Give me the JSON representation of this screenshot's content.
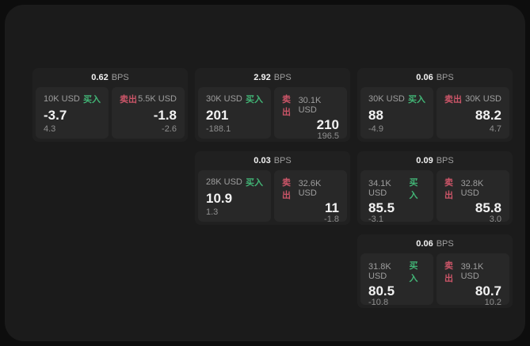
{
  "theme": {
    "outer_bg": "#0d0d0d",
    "window_bg": "#1b1b1b",
    "card_bg": "#202020",
    "panel_bg": "#282828",
    "text_primary": "#f2f2f2",
    "text_secondary": "#9e9e9e",
    "text_muted": "#8f8f8f",
    "buy_color": "#42b576",
    "sell_color": "#cb5568"
  },
  "labels": {
    "bps_unit": "BPS",
    "buy": "买入",
    "sell": "卖出"
  },
  "cards": [
    {
      "spread_bps": "0.62",
      "row": 1,
      "col": 1,
      "buy": {
        "size": "10K USD",
        "price": "-3.7",
        "delta": "4.3"
      },
      "sell": {
        "size": "5.5K USD",
        "price": "-1.8",
        "delta": "-2.6"
      }
    },
    {
      "spread_bps": "2.92",
      "row": 1,
      "col": 2,
      "buy": {
        "size": "30K USD",
        "price": "201",
        "delta": "-188.1"
      },
      "sell": {
        "size": "30.1K USD",
        "price": "210",
        "delta": "196.5"
      }
    },
    {
      "spread_bps": "0.06",
      "row": 1,
      "col": 3,
      "buy": {
        "size": "30K USD",
        "price": "88",
        "delta": "-4.9"
      },
      "sell": {
        "size": "30K USD",
        "price": "88.2",
        "delta": "4.7"
      }
    },
    {
      "spread_bps": "0.03",
      "row": 2,
      "col": 2,
      "buy": {
        "size": "28K USD",
        "price": "10.9",
        "delta": "1.3"
      },
      "sell": {
        "size": "32.6K USD",
        "price": "11",
        "delta": "-1.8"
      }
    },
    {
      "spread_bps": "0.09",
      "row": 2,
      "col": 3,
      "buy": {
        "size": "34.1K USD",
        "price": "85.5",
        "delta": "-3.1"
      },
      "sell": {
        "size": "32.8K USD",
        "price": "85.8",
        "delta": "3.0"
      }
    },
    {
      "spread_bps": "0.06",
      "row": 3,
      "col": 3,
      "buy": {
        "size": "31.8K USD",
        "price": "80.5",
        "delta": "-10.8"
      },
      "sell": {
        "size": "39.1K USD",
        "price": "80.7",
        "delta": "10.2"
      }
    }
  ]
}
